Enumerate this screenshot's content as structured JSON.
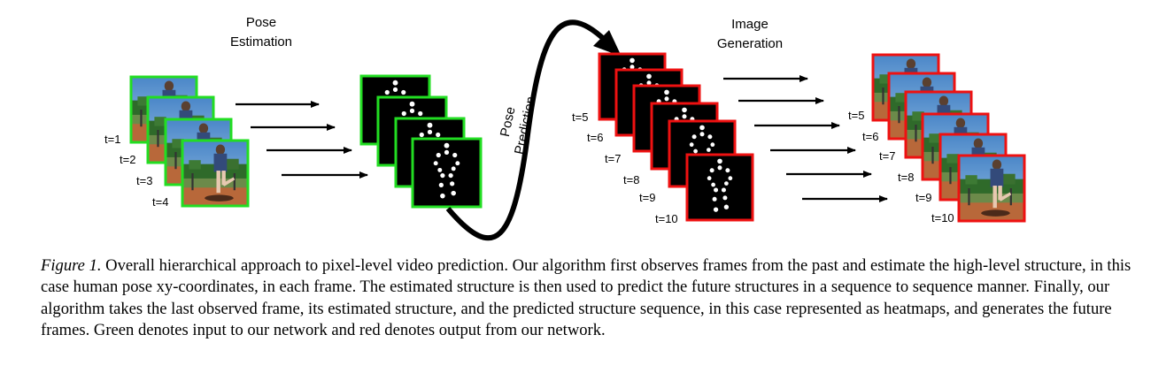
{
  "stages": {
    "pose_estimation": [
      "Pose",
      "Estimation"
    ],
    "pose_prediction": [
      "Pose",
      "Prediction"
    ],
    "image_generation": [
      "Image",
      "Generation"
    ]
  },
  "input_frames": {
    "labels": [
      "t=1",
      "t=2",
      "t=3",
      "t=4"
    ],
    "border_color": "#22dd22",
    "content": "photo"
  },
  "input_poses": {
    "count": 4,
    "border_color": "#22dd22",
    "content": "pose-heatmap"
  },
  "predicted_poses": {
    "labels": [
      "t=5",
      "t=6",
      "t=7",
      "t=8",
      "t=9",
      "t=10"
    ],
    "border_color": "#ee1111",
    "content": "pose-heatmap"
  },
  "generated_frames": {
    "labels": [
      "t=5",
      "t=6",
      "t=7",
      "t=8",
      "t=9",
      "t=10"
    ],
    "border_color": "#ee1111",
    "content": "photo"
  },
  "caption": {
    "label": "Figure 1.",
    "text": "Overall hierarchical approach to pixel-level video prediction. Our algorithm first observes frames from the past and estimate the high-level structure, in this case human pose xy-coordinates, in each frame. The estimated structure is then used to predict the future structures in a sequence to sequence manner. Finally, our algorithm takes the last observed frame, its estimated structure, and the predicted structure sequence, in this case represented as heatmaps, and generates the future frames. Green denotes input to our network and red denotes output from our network."
  }
}
